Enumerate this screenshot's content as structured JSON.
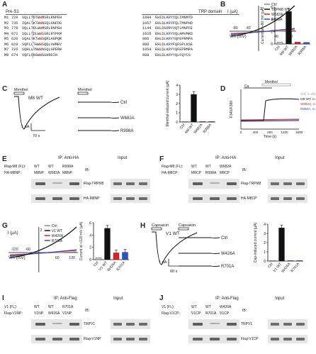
{
  "panels": {
    "A": {
      "label": "A",
      "left_header": "Pre-S1",
      "right_header": "TRP domain",
      "rows": [
        {
          "id": "M1",
          "n1": "729",
          "pre": "SQLLTDTW",
          "mark": "W",
          "post": "MSRLRNPEH",
          "n2": "1084",
          "trp": "EHIDLKRYYQLIMNMTD"
        },
        {
          "id": "M2",
          "n1": "735",
          "pre": "IQALTKTW",
          "mark": "W",
          "post": "NSQLGNFDG",
          "n2": "1057",
          "trp": "EHLDLKRYFQLTMNPHD"
        },
        {
          "id": "M3",
          "n1": "778",
          "pre": "SQLLTDLW",
          "mark": "W",
          "post": "MSRLRNPEH",
          "n2": "1144",
          "trp": "EHLDGRRYVQTLMNPFE"
        },
        {
          "id": "M4",
          "n1": "672",
          "pre": "SQLLTDLW",
          "mark": "W",
          "post": "SSRLRYPKM",
          "n2": "1026",
          "trp": "EHLDLKRYVQLAMVMKD"
        },
        {
          "id": "M5",
          "n1": "620",
          "pre": "SQALTKTW",
          "mark": "W",
          "post": "SQRLAGPQR",
          "n2": "986",
          "trp": "EHLDLKRYYQFEPRMPA"
        },
        {
          "id": "M6",
          "n1": "629",
          "pre": "SQPLLTHW",
          "mark": "W",
          "post": "SQQLVWMEV",
          "n2": "980",
          "trp": "EHLDLKRYFQFSPLKSE"
        },
        {
          "id": "M7",
          "n1": "726",
          "pre": "SQHLLTNW",
          "mark": "W",
          "post": "NSQLGPERW",
          "n2": "1054",
          "trp": "EHLDLKRYYQFEPRMPA"
        },
        {
          "id": "M8",
          "n1": "674",
          "pre": "VQFLSKGW",
          "mark": "W",
          "post": "GSHRDIH",
          "n2": "988",
          "trp": "EHLDLKRYYQLFQYCS"
        }
      ]
    },
    "B": {
      "label": "B",
      "legend": [
        {
          "name": "Ctrl",
          "color": "#888888"
        },
        {
          "name": "TRPM8 WT",
          "color": "#111111"
        },
        {
          "name": "W682A",
          "color": "#e02020"
        },
        {
          "name": "R998A",
          "color": "#2a50d0"
        }
      ],
      "y_unit": "I (µA)",
      "x_unit": "Vm (mV)",
      "ticks": {
        "y": "1",
        "x": [
          "-80",
          "-40",
          "40",
          "80"
        ]
      },
      "bar_ylabel": "Current at +80 mV (µA)",
      "bar_yticks": [
        "0",
        "2",
        "4",
        "6"
      ]
    },
    "C": {
      "label": "C",
      "stim": "Menthol",
      "trace_label": "M8 WT",
      "traces": [
        "Ctrl",
        "W682A",
        "R998A"
      ],
      "scale_y": "1 µA",
      "scale_x": "70 s",
      "bar_ylabel": "Menthol-induced current (µA)",
      "bar_yticks": [
        "0",
        "1",
        "2",
        "3",
        "4"
      ]
    },
    "D": {
      "label": "D",
      "stim_top": "Menthol",
      "stim_ca": "Ca",
      "ylabel": "F340/F380",
      "xlabel": "Time (s)",
      "xticks": [
        "0",
        "400",
        "800",
        "1200",
        "1600"
      ],
      "legend": [
        {
          "name": "Ctrl, n=40/3",
          "color": "#9a9a9a"
        },
        {
          "name": "M8 WT, n=76/4",
          "color": "#222222"
        },
        {
          "name": "W682A, n=66/4",
          "color": "#e02020"
        },
        {
          "name": "R998A, n=63/4",
          "color": "#2a50d0"
        }
      ]
    },
    "E": {
      "label": "E",
      "ip": "IP: Anti-HA",
      "input": "Input",
      "row1_label": "Flag-M8 (FL):",
      "row1": [
        "WT",
        "WT",
        "R998A"
      ],
      "row2_label": "HA-M8NP:",
      "row2": [
        "M8NP",
        "W682A",
        "M8NP"
      ],
      "ib": "IB:",
      "blot1": "Flag-TRPM8",
      "blot2": "HA-M8NP"
    },
    "F": {
      "label": "F",
      "ip": "IP: Anti-HA",
      "input": "Input",
      "row1_label": "Flag-M8 (FL):",
      "row1": [
        "WT",
        "WT",
        "W682A"
      ],
      "row2_label": "HA-M8CP:",
      "row2": [
        "M8CP",
        "R998A",
        "M8CP"
      ],
      "ib": "IB:",
      "blot1": "Flag-TRPM8",
      "blot2": "HA-M8CP"
    },
    "G": {
      "label": "G",
      "legend": [
        {
          "name": "Ctrl",
          "color": "#888888"
        },
        {
          "name": "V1 WT",
          "color": "#111111"
        },
        {
          "name": "W426A",
          "color": "#e02020"
        },
        {
          "name": "R701A",
          "color": "#2a50d0"
        }
      ],
      "y_unit": "I (µA)",
      "x_unit": "Vm (mV)",
      "ticks": {
        "y": "2",
        "x": [
          "-120",
          "-60",
          "60",
          "120"
        ]
      },
      "bar_ylabel": "Current at +120 mV (µA)",
      "bar_yticks": [
        "0",
        "2",
        "4",
        "6"
      ]
    },
    "H": {
      "label": "H",
      "stim": "Capsaicin",
      "trace_label": "V1 WT",
      "traces": [
        "Ctrl",
        "W426A",
        "R701A"
      ],
      "scale_y": "1 µA",
      "scale_x": "60 s",
      "bar_ylabel": "Cap-induced current (µA)",
      "bar_yticks": [
        "0",
        "1",
        "2",
        "3",
        "4"
      ]
    },
    "I": {
      "label": "I",
      "ip": "IP: Anti-Flag",
      "input": "Input",
      "row1_label": "V1 (FL):",
      "row1": [
        "WT",
        "WT",
        "R701A"
      ],
      "row2_label": "Flag-V1NP:",
      "row2": [
        "V1NP",
        "W426A",
        "V1NP"
      ],
      "ib": "IB:",
      "blot1": "TRPV1",
      "blot2": "Flag-V1NP"
    },
    "J": {
      "label": "J",
      "ip": "IP: Anti-Flag",
      "input": "Input",
      "row1_label": "V1 (FL):",
      "row1": [
        "WT",
        "WT",
        "W426A"
      ],
      "row2_label": "Flag-V1CP:",
      "row2": [
        "V1CP",
        "R701A",
        "V1CP"
      ],
      "ib": "IB:",
      "blot1": "TRPV1",
      "blot2": "Flag-V1CP"
    }
  },
  "chart_data": [
    {
      "type": "bar",
      "panel": "B",
      "categories": [
        "Ctrl",
        "M8 WT",
        "W682A",
        "R998A"
      ],
      "values": [
        0.3,
        5.3,
        0.3,
        0.25
      ],
      "colors": [
        "#cccccc",
        "#111111",
        "#e02020",
        "#2a50d0"
      ],
      "ylabel": "Current at +80 mV (µA)",
      "ylim": [
        0,
        6
      ]
    },
    {
      "type": "bar",
      "panel": "C",
      "categories": [
        "Ctrl",
        "M8 WT",
        "W682A",
        "R998A"
      ],
      "values": [
        0.0,
        3.0,
        0.0,
        0.0
      ],
      "colors": [
        "#cccccc",
        "#111111",
        "#e02020",
        "#2a50d0"
      ],
      "ylabel": "Menthol-induced current (µA)",
      "ylim": [
        0,
        4
      ]
    },
    {
      "type": "bar",
      "panel": "G",
      "categories": [
        "Ctrl",
        "V1 WT",
        "W426A",
        "R701A"
      ],
      "values": [
        0.3,
        5.1,
        1.1,
        1.2
      ],
      "colors": [
        "#cccccc",
        "#111111",
        "#e02020",
        "#2a50d0"
      ],
      "ylabel": "Current at +120 mV (µA)",
      "ylim": [
        0,
        6
      ]
    },
    {
      "type": "bar",
      "panel": "H",
      "categories": [
        "Ctrl",
        "V1 WT",
        "W426A",
        "R701A"
      ],
      "values": [
        0.0,
        3.6,
        0.05,
        0.05
      ],
      "colors": [
        "#cccccc",
        "#111111",
        "#e02020",
        "#2a50d0"
      ],
      "ylabel": "Cap-induced current (µA)",
      "ylim": [
        0,
        4
      ]
    }
  ]
}
